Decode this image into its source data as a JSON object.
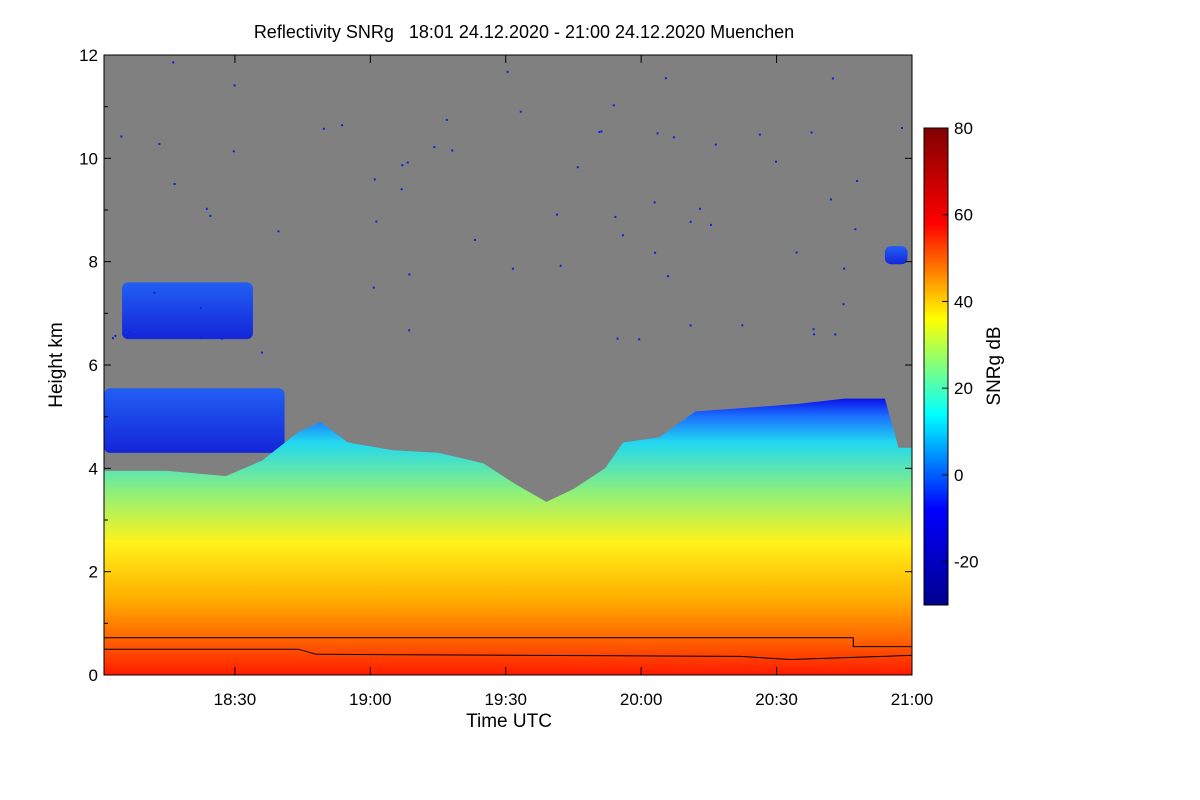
{
  "chart_data": {
    "type": "heatmap",
    "title": "Reflectivity SNRg   18:01 24.12.2020 - 21:00 24.12.2020 Muenchen",
    "xlabel": "Time UTC",
    "ylabel": "Height km",
    "xlim": [
      "18:01",
      "21:00"
    ],
    "ylim": [
      0,
      12
    ],
    "x_ticks": [
      "18:30",
      "19:00",
      "19:30",
      "20:00",
      "20:30",
      "21:00"
    ],
    "y_ticks": [
      "0",
      "2",
      "4",
      "6",
      "8",
      "10",
      "12"
    ],
    "colorbar": {
      "label": "SNRg dB",
      "range": [
        -30,
        80
      ],
      "ticks": [
        "-20",
        "0",
        "20",
        "40",
        "60",
        "80"
      ],
      "colormap": "jet",
      "colors": [
        "#00008f",
        "#0000ff",
        "#00ffff",
        "#ffff00",
        "#ff0000",
        "#800000"
      ]
    },
    "background_color": "#808080",
    "cloud_top_km": [
      {
        "t": "18:01",
        "h": 3.95
      },
      {
        "t": "18:15",
        "h": 3.95
      },
      {
        "t": "18:28",
        "h": 3.85
      },
      {
        "t": "18:36",
        "h": 4.15
      },
      {
        "t": "18:44",
        "h": 4.7
      },
      {
        "t": "18:49",
        "h": 4.9
      },
      {
        "t": "18:55",
        "h": 4.5
      },
      {
        "t": "19:05",
        "h": 4.35
      },
      {
        "t": "19:15",
        "h": 4.3
      },
      {
        "t": "19:25",
        "h": 4.1
      },
      {
        "t": "19:32",
        "h": 3.7
      },
      {
        "t": "19:39",
        "h": 3.35
      },
      {
        "t": "19:45",
        "h": 3.6
      },
      {
        "t": "19:52",
        "h": 4.0
      },
      {
        "t": "19:56",
        "h": 4.5
      },
      {
        "t": "20:04",
        "h": 4.6
      },
      {
        "t": "20:12",
        "h": 5.1
      },
      {
        "t": "20:20",
        "h": 5.15
      },
      {
        "t": "20:35",
        "h": 5.25
      },
      {
        "t": "20:45",
        "h": 5.35
      },
      {
        "t": "20:54",
        "h": 5.35
      },
      {
        "t": "20:57",
        "h": 4.4
      },
      {
        "t": "21:00",
        "h": 4.4
      }
    ],
    "upper_cloud_layers": [
      {
        "t_start": "18:01",
        "t_end": "18:41",
        "h_bottom": 4.3,
        "h_top": 5.55
      },
      {
        "t_start": "18:05",
        "t_end": "18:34",
        "h_bottom": 6.5,
        "h_top": 7.6
      },
      {
        "t_start": "20:54",
        "t_end": "20:59",
        "h_bottom": 7.95,
        "h_top": 8.3
      }
    ],
    "boundary_lines_km": [
      {
        "name": "",
        "values": [
          {
            "t": "18:01",
            "h": 0.72
          },
          {
            "t": "20:47",
            "h": 0.72
          },
          {
            "t": "20:47",
            "h": 0.55
          },
          {
            "t": "21:00",
            "h": 0.55
          }
        ]
      },
      {
        "name": "",
        "values": [
          {
            "t": "18:01",
            "h": 0.5
          },
          {
            "t": "18:44",
            "h": 0.5
          },
          {
            "t": "18:48",
            "h": 0.4
          },
          {
            "t": "20:22",
            "h": 0.36
          },
          {
            "t": "20:33",
            "h": 0.3
          },
          {
            "t": "21:00",
            "h": 0.38
          }
        ]
      }
    ],
    "grid": false,
    "legend": "colorbar-right"
  }
}
